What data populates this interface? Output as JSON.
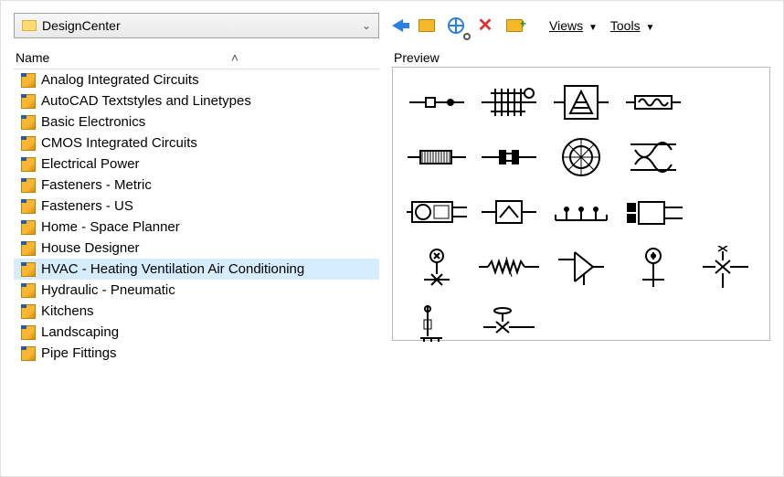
{
  "toolbar": {
    "dropdown_label": "DesignCenter",
    "menu_views": "Views",
    "menu_tools": "Tools"
  },
  "list": {
    "header_name": "Name",
    "items": [
      {
        "label": "Analog Integrated Circuits",
        "selected": false
      },
      {
        "label": "AutoCAD Textstyles and Linetypes",
        "selected": false
      },
      {
        "label": "Basic Electronics",
        "selected": false
      },
      {
        "label": "CMOS Integrated Circuits",
        "selected": false
      },
      {
        "label": "Electrical Power",
        "selected": false
      },
      {
        "label": "Fasteners - Metric",
        "selected": false
      },
      {
        "label": "Fasteners - US",
        "selected": false
      },
      {
        "label": "Home - Space Planner",
        "selected": false
      },
      {
        "label": "House Designer",
        "selected": false
      },
      {
        "label": "HVAC - Heating Ventilation Air Conditioning",
        "selected": true
      },
      {
        "label": "Hydraulic - Pneumatic",
        "selected": false
      },
      {
        "label": "Kitchens",
        "selected": false
      },
      {
        "label": "Landscaping",
        "selected": false
      },
      {
        "label": "Pipe Fittings",
        "selected": false
      }
    ]
  },
  "preview": {
    "label": "Preview",
    "grid_cols": 5,
    "symbol_count": 19,
    "colors": {
      "stroke": "#000000",
      "background": "#ffffff",
      "border": "#b8b8b8"
    }
  },
  "colors": {
    "accent_blue": "#2a80e0",
    "selection_bg": "#d6ecff",
    "dwg_icon": "#f7b733",
    "folder": "#f5b829",
    "delete_red": "#e03030"
  }
}
